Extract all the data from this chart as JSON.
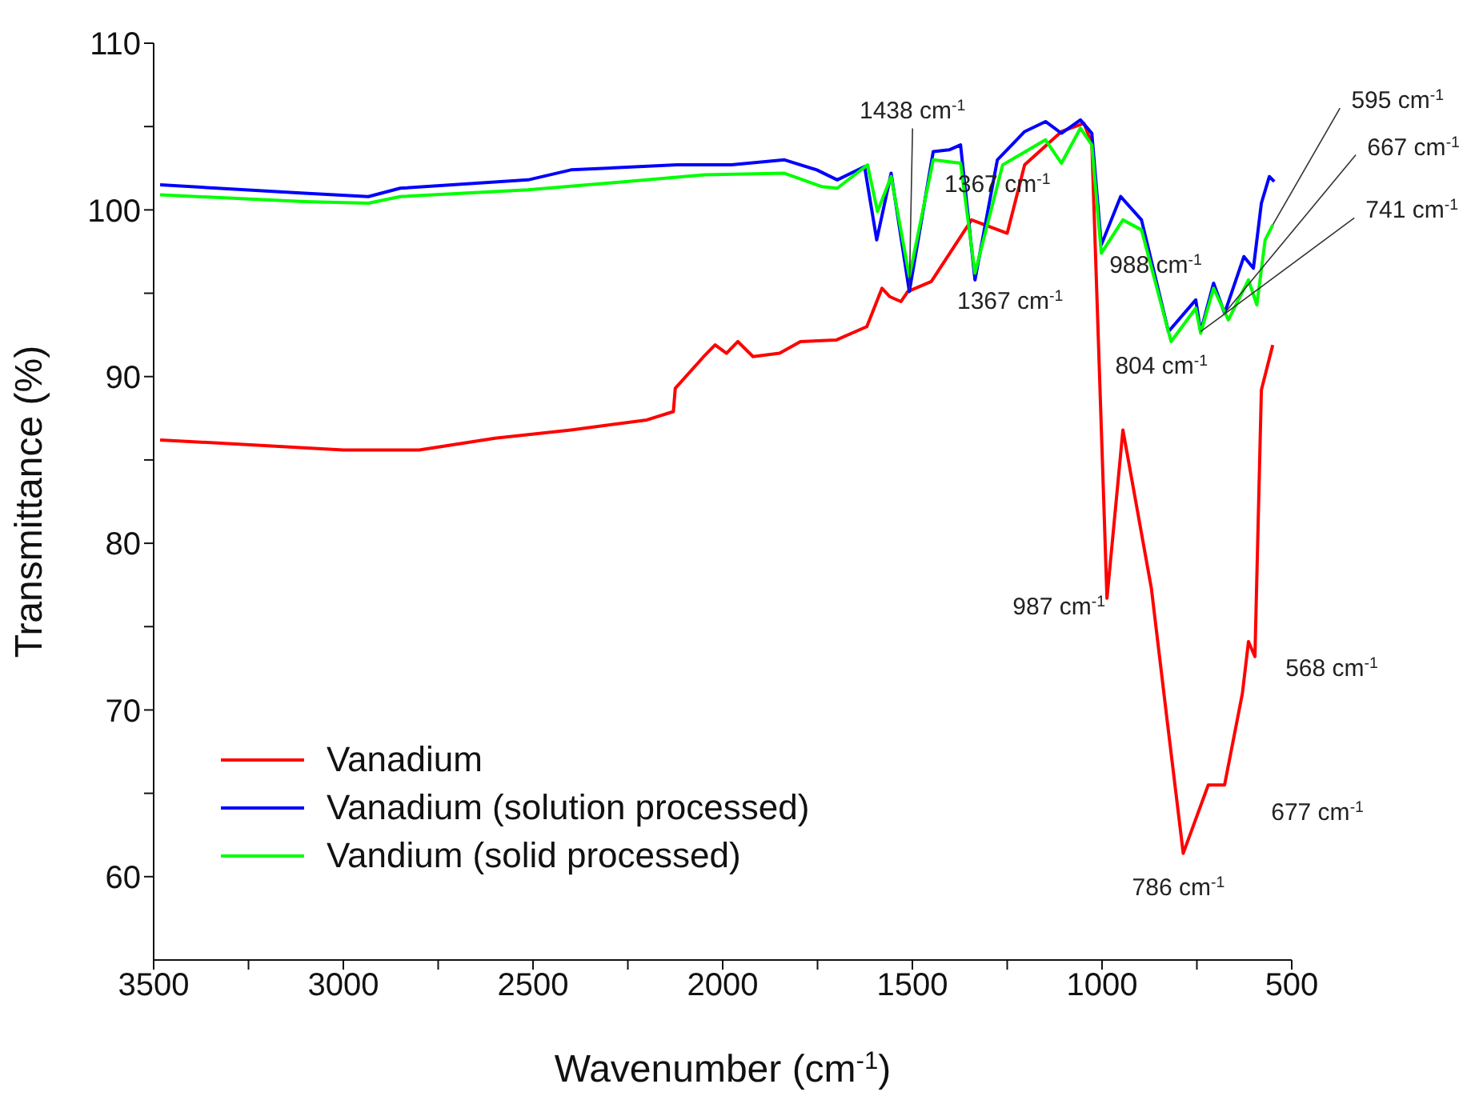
{
  "chart_data": {
    "type": "line",
    "xlabel": "Wavenumber (cm$^{-1}$)",
    "ylabel": "Transmittance (%)",
    "xlim": [
      3500,
      500
    ],
    "ylim": [
      55,
      110
    ],
    "xticks": [
      3500,
      {
        "value": 3250,
        "label": null
      },
      3000,
      {
        "value": 2750,
        "label": null
      },
      2500,
      {
        "value": 2250,
        "label": null
      },
      2000,
      {
        "value": 1750,
        "label": null
      },
      1500,
      {
        "value": 1250,
        "label": null
      },
      1000,
      {
        "value": 750,
        "label": null
      },
      500
    ],
    "yticks": [
      60,
      {
        "value": 65,
        "label": null
      },
      70,
      {
        "value": 75,
        "label": null
      },
      80,
      {
        "value": 85,
        "label": null
      },
      90,
      {
        "value": 95,
        "label": null
      },
      100,
      {
        "value": 105,
        "label": null
      },
      110
    ],
    "legend": "bottom left",
    "marker": "none",
    "line_style": "solid",
    "series": [
      {
        "name": "Vanadium",
        "color": "#ff0000",
        "x": [
          3483,
          3000,
          2800,
          2600,
          2400,
          2200,
          2130,
          2125,
          2050,
          2020,
          1990,
          1960,
          1920,
          1850,
          1795,
          1700,
          1620,
          1580,
          1560,
          1530,
          1512,
          1450,
          1344,
          1250,
          1204,
          1107,
          1048,
          1027,
          987,
          945,
          870,
          828,
          786,
          720,
          677,
          630,
          614,
          597,
          580,
          550
        ],
        "values": [
          86.2,
          85.6,
          85.6,
          86.3,
          86.8,
          87.4,
          87.9,
          89.3,
          91.2,
          91.9,
          91.4,
          92.1,
          91.2,
          91.4,
          92.1,
          92.2,
          93.0,
          95.3,
          94.8,
          94.5,
          95.1,
          95.7,
          99.4,
          98.6,
          102.7,
          104.7,
          105.2,
          104.0,
          76.7,
          86.8,
          77.3,
          69.3,
          61.4,
          65.5,
          65.5,
          71.0,
          74.1,
          73.2,
          89.2,
          91.9
        ]
      },
      {
        "name": "Vanadium (solution processed)",
        "color": "#0000ff",
        "x": [
          3483,
          3103,
          2934,
          2850,
          2513,
          2400,
          2120,
          1977,
          1837,
          1752,
          1698,
          1626,
          1594,
          1556,
          1508,
          1445,
          1403,
          1373,
          1335,
          1276,
          1204,
          1149,
          1107,
          1057,
          1027,
          1002,
          951,
          896,
          825,
          753,
          740,
          706,
          677,
          626,
          601,
          580,
          559,
          546
        ],
        "values": [
          101.5,
          101.0,
          100.8,
          101.3,
          101.8,
          102.4,
          102.7,
          102.7,
          103.0,
          102.4,
          101.8,
          102.6,
          98.2,
          102.2,
          95.1,
          103.5,
          103.6,
          103.9,
          95.8,
          103.0,
          104.7,
          105.3,
          104.6,
          105.4,
          104.6,
          97.9,
          100.8,
          99.4,
          92.7,
          94.6,
          92.7,
          95.6,
          93.8,
          97.2,
          96.5,
          100.4,
          102.0,
          101.7
        ]
      },
      {
        "name": "Vandium (solid processed)",
        "color": "#00ff00",
        "x": [
          3483,
          3103,
          2934,
          2850,
          2513,
          2048,
          1837,
          1740,
          1698,
          1618,
          1592,
          1556,
          1508,
          1445,
          1373,
          1335,
          1262,
          1149,
          1107,
          1057,
          1027,
          1002,
          945,
          896,
          818,
          753,
          740,
          706,
          667,
          614,
          592,
          570,
          550
        ],
        "values": [
          100.9,
          100.5,
          100.4,
          100.8,
          101.2,
          102.1,
          102.2,
          101.4,
          101.3,
          102.7,
          99.9,
          102.0,
          96.0,
          103.0,
          102.8,
          96.2,
          102.7,
          104.2,
          102.8,
          104.9,
          103.9,
          97.4,
          99.4,
          98.8,
          92.1,
          94.1,
          92.6,
          95.3,
          93.4,
          95.8,
          94.3,
          98.2,
          99.1
        ]
      }
    ],
    "annotations": [
      {
        "text": "1438 cm$^{-1}$",
        "x": 1508,
        "y": 95.1
      },
      {
        "text": "1367 cm$^{-1}$",
        "x": 1335,
        "y": 95.8
      },
      {
        "text": "1367 cm$^{-1}$",
        "x": 1107,
        "y": 102.8
      },
      {
        "text": "988 cm$^{-1}$",
        "x": 1002,
        "y": 97.4
      },
      {
        "text": "804 cm$^{-1}$",
        "x": 818,
        "y": 92.1
      },
      {
        "text": "595 cm$^{-1}$",
        "x": 550,
        "y": 99.1
      },
      {
        "text": "667 cm$^{-1}$",
        "x": 677,
        "y": 93.8
      },
      {
        "text": "741 cm$^{-1}$",
        "x": 740,
        "y": 92.7
      },
      {
        "text": "987 cm$^{-1}$",
        "x": 987,
        "y": 76.7
      },
      {
        "text": "786 cm$^{-1}$",
        "x": 786,
        "y": 61.4
      },
      {
        "text": "677 cm$^{-1}$",
        "x": 677,
        "y": 65.5
      },
      {
        "text": "568 cm$^{-1}$",
        "x": 597,
        "y": 73.2
      }
    ]
  }
}
